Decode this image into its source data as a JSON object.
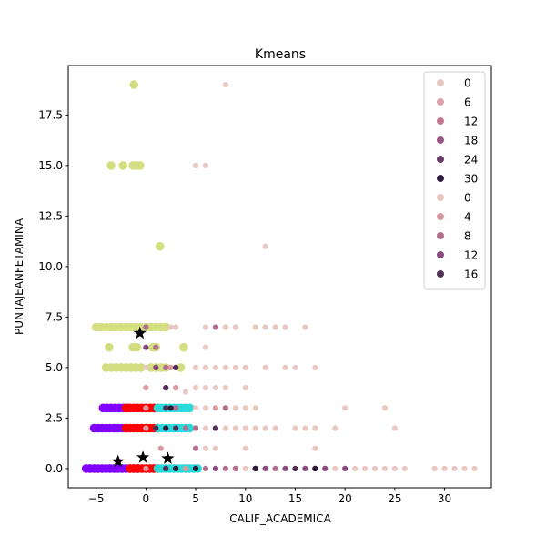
{
  "chart_data": {
    "type": "scatter",
    "title": "Kmeans",
    "xlabel": "CALIF_ACADEMICA",
    "ylabel": "PUNTAJEANFETAMINA",
    "xlim": [
      -7.8,
      34.7
    ],
    "ylim": [
      -0.95,
      19.95
    ],
    "x_ticks": [
      -5,
      0,
      5,
      10,
      15,
      20,
      25,
      30
    ],
    "y_ticks": [
      0.0,
      2.5,
      5.0,
      7.5,
      10.0,
      12.5,
      15.0,
      17.5
    ],
    "x_tick_labels": [
      "−5",
      "0",
      "5",
      "10",
      "15",
      "20",
      "25",
      "30"
    ],
    "y_tick_labels": [
      "0.0",
      "2.5",
      "5.0",
      "7.5",
      "10.0",
      "12.5",
      "15.0",
      "17.5"
    ],
    "grid": false,
    "legend": {
      "placement": "upper right",
      "entries": [
        {
          "label": "0",
          "color": "#e9c7c2"
        },
        {
          "label": "6",
          "color": "#dca2a8"
        },
        {
          "label": "12",
          "color": "#c4788f"
        },
        {
          "label": "18",
          "color": "#9c5486"
        },
        {
          "label": "24",
          "color": "#6a3867"
        },
        {
          "label": "30",
          "color": "#2f1c3c"
        },
        {
          "label": "0",
          "color": "#ebc5bd"
        },
        {
          "label": "4",
          "color": "#d99aa2"
        },
        {
          "label": "8",
          "color": "#b26e8d"
        },
        {
          "label": "12",
          "color": "#8a4a80"
        },
        {
          "label": "16",
          "color": "#522e57"
        }
      ]
    },
    "series": [
      {
        "color": "#d2de80",
        "marker": "circle-large",
        "points": [
          [
            -1.2,
            19
          ],
          [
            -3.5,
            15
          ],
          [
            -2.3,
            15
          ],
          [
            -1.3,
            15
          ],
          [
            -0.9,
            15
          ],
          [
            -0.6,
            15
          ],
          [
            1.4,
            11
          ],
          [
            -5,
            7
          ],
          [
            -4.5,
            7
          ],
          [
            -4,
            7
          ],
          [
            -3.5,
            7
          ],
          [
            -3,
            7
          ],
          [
            -2.5,
            7
          ],
          [
            -2,
            7
          ],
          [
            -1.5,
            7
          ],
          [
            -1,
            7
          ],
          [
            -0.5,
            7
          ],
          [
            0,
            7
          ],
          [
            0.5,
            7
          ],
          [
            1,
            7
          ],
          [
            1.5,
            7
          ],
          [
            2,
            7
          ],
          [
            -3.7,
            6
          ],
          [
            -1.3,
            6
          ],
          [
            -0.9,
            6
          ],
          [
            0.7,
            6
          ],
          [
            1.0,
            6
          ],
          [
            3.8,
            6
          ],
          [
            -4,
            5
          ],
          [
            -3.5,
            5
          ],
          [
            -3,
            5
          ],
          [
            -2.5,
            5
          ],
          [
            -2,
            5
          ],
          [
            -1.5,
            5
          ],
          [
            -1,
            5
          ],
          [
            -0.5,
            5
          ],
          [
            0.5,
            5
          ],
          [
            1,
            5
          ],
          [
            1.5,
            5
          ],
          [
            2,
            5
          ],
          [
            3.5,
            5
          ]
        ]
      },
      {
        "color": "#7f00ff",
        "marker": "circle-large",
        "points": [
          [
            -6,
            0
          ],
          [
            -5.6,
            0
          ],
          [
            -5.2,
            0
          ],
          [
            -4.8,
            0
          ],
          [
            -4.4,
            0
          ],
          [
            -4,
            0
          ],
          [
            -3.6,
            0
          ],
          [
            -3.2,
            0
          ],
          [
            -2.8,
            0
          ],
          [
            -2.4,
            0
          ],
          [
            -2,
            0
          ],
          [
            -1.6,
            0
          ],
          [
            -1.2,
            0
          ],
          [
            -0.8,
            0
          ],
          [
            -5.2,
            2
          ],
          [
            -4.8,
            2
          ],
          [
            -4.4,
            2
          ],
          [
            -4,
            2
          ],
          [
            -3.6,
            2
          ],
          [
            -3.2,
            2
          ],
          [
            -2.8,
            2
          ],
          [
            -2.4,
            2
          ],
          [
            -2,
            2
          ],
          [
            -4.3,
            3
          ],
          [
            -3.9,
            3
          ],
          [
            -3.5,
            3
          ],
          [
            -3.1,
            3
          ],
          [
            -2.7,
            3
          ],
          [
            -2.3,
            3
          ],
          [
            -1.9,
            3
          ]
        ]
      },
      {
        "color": "#ff0000",
        "marker": "circle-large",
        "points": [
          [
            -1.6,
            0
          ],
          [
            -1.2,
            0
          ],
          [
            -0.8,
            0
          ],
          [
            -0.4,
            0
          ],
          [
            0,
            0
          ],
          [
            0.4,
            0
          ],
          [
            0.8,
            0
          ],
          [
            1.2,
            0
          ],
          [
            -2,
            2
          ],
          [
            -1.6,
            2
          ],
          [
            -1.2,
            2
          ],
          [
            -0.8,
            2
          ],
          [
            -0.4,
            2
          ],
          [
            0,
            2
          ],
          [
            0.4,
            2
          ],
          [
            0.8,
            2
          ],
          [
            1.2,
            2
          ],
          [
            -2,
            3
          ],
          [
            -1.6,
            3
          ],
          [
            -1.2,
            3
          ],
          [
            -0.8,
            3
          ],
          [
            -0.4,
            3
          ],
          [
            0,
            3
          ],
          [
            0.4,
            3
          ],
          [
            0.8,
            3
          ],
          [
            1.2,
            3
          ]
        ]
      },
      {
        "color": "#2ad9d9",
        "marker": "circle-large",
        "points": [
          [
            1.2,
            0
          ],
          [
            1.6,
            0
          ],
          [
            2,
            0
          ],
          [
            2.4,
            0
          ],
          [
            2.8,
            0
          ],
          [
            3.2,
            0
          ],
          [
            3.6,
            0
          ],
          [
            4,
            0
          ],
          [
            4.4,
            0
          ],
          [
            4.8,
            0
          ],
          [
            5.2,
            0
          ],
          [
            1.2,
            2
          ],
          [
            1.6,
            2
          ],
          [
            2,
            2
          ],
          [
            2.4,
            2
          ],
          [
            2.8,
            2
          ],
          [
            3.2,
            2
          ],
          [
            3.6,
            2
          ],
          [
            4,
            2
          ],
          [
            4.4,
            2
          ],
          [
            1.2,
            3
          ],
          [
            1.6,
            3
          ],
          [
            2,
            3
          ],
          [
            2.4,
            3
          ],
          [
            2.8,
            3
          ],
          [
            3.2,
            3
          ],
          [
            3.6,
            3
          ],
          [
            4,
            3
          ],
          [
            4.4,
            3
          ]
        ]
      },
      {
        "color": "#e9c7c2",
        "marker": "circle-small",
        "points": [
          [
            8,
            19
          ],
          [
            5,
            15
          ],
          [
            6,
            15
          ],
          [
            12,
            11
          ],
          [
            2.5,
            7
          ],
          [
            3,
            7
          ],
          [
            6,
            7
          ],
          [
            8,
            7
          ],
          [
            9,
            7
          ],
          [
            11,
            7
          ],
          [
            12,
            7
          ],
          [
            13,
            7
          ],
          [
            14,
            7
          ],
          [
            16,
            7
          ],
          [
            6,
            6
          ],
          [
            0,
            5
          ],
          [
            2.5,
            5
          ],
          [
            5,
            5
          ],
          [
            6,
            5
          ],
          [
            7,
            5
          ],
          [
            8,
            5
          ],
          [
            9,
            5
          ],
          [
            10,
            5
          ],
          [
            12,
            5
          ],
          [
            14,
            5
          ],
          [
            15,
            5
          ],
          [
            17,
            5
          ],
          [
            5,
            4
          ],
          [
            6,
            4
          ],
          [
            7,
            4
          ],
          [
            8,
            4
          ],
          [
            10,
            4
          ],
          [
            4,
            3.8
          ],
          [
            5,
            3
          ],
          [
            6,
            3
          ],
          [
            7,
            3
          ],
          [
            8,
            3
          ],
          [
            9,
            3
          ],
          [
            10,
            3
          ],
          [
            11,
            3
          ],
          [
            20,
            3
          ],
          [
            24,
            3
          ],
          [
            5,
            2
          ],
          [
            6,
            2
          ],
          [
            7,
            2
          ],
          [
            8,
            2
          ],
          [
            9,
            2
          ],
          [
            10,
            2
          ],
          [
            11,
            2
          ],
          [
            12,
            2
          ],
          [
            13,
            2
          ],
          [
            15,
            2
          ],
          [
            16,
            2
          ],
          [
            17,
            2
          ],
          [
            19,
            2
          ],
          [
            25,
            2
          ],
          [
            6,
            1
          ],
          [
            7,
            1
          ],
          [
            10,
            1
          ],
          [
            17,
            1
          ],
          [
            7,
            0
          ],
          [
            8,
            0
          ],
          [
            9,
            0
          ],
          [
            10,
            0
          ],
          [
            12,
            0
          ],
          [
            18,
            0
          ],
          [
            19,
            0
          ],
          [
            20,
            0
          ],
          [
            21,
            0
          ],
          [
            22,
            0
          ],
          [
            23,
            0
          ],
          [
            24,
            0
          ],
          [
            25,
            0
          ],
          [
            26,
            0
          ],
          [
            29,
            0
          ],
          [
            30,
            0
          ],
          [
            31,
            0
          ],
          [
            32,
            0
          ],
          [
            33,
            0
          ]
        ]
      },
      {
        "color": "#d99aa2",
        "marker": "circle-small",
        "points": [
          [
            0,
            4
          ],
          [
            0,
            3
          ],
          [
            3,
            4
          ],
          [
            0,
            0
          ],
          [
            4,
            0
          ],
          [
            1.5,
            1
          ],
          [
            2.5,
            5
          ],
          [
            7,
            3
          ],
          [
            3,
            0
          ],
          [
            0,
            2
          ]
        ]
      },
      {
        "color": "#b26e8d",
        "marker": "circle-small",
        "points": [
          [
            0,
            7
          ],
          [
            1,
            6
          ],
          [
            2,
            5
          ],
          [
            5,
            2
          ],
          [
            6,
            0
          ],
          [
            7,
            7
          ],
          [
            8,
            3
          ],
          [
            9,
            0
          ],
          [
            13,
            0
          ],
          [
            5,
            1
          ],
          [
            4,
            2
          ],
          [
            7,
            2
          ],
          [
            8,
            0
          ],
          [
            3,
            3
          ]
        ]
      },
      {
        "color": "#8a4a80",
        "marker": "circle-small",
        "points": [
          [
            0,
            6
          ],
          [
            1,
            5
          ],
          [
            7,
            0
          ],
          [
            12,
            0
          ],
          [
            14,
            0
          ],
          [
            16,
            0
          ],
          [
            18,
            0
          ],
          [
            20,
            0
          ],
          [
            5,
            0
          ]
        ]
      },
      {
        "color": "#522e57",
        "marker": "circle-small",
        "points": [
          [
            2,
            4
          ],
          [
            3,
            5
          ],
          [
            2,
            3
          ],
          [
            7,
            2
          ],
          [
            11,
            0
          ],
          [
            15,
            0
          ],
          [
            17,
            0
          ],
          [
            2,
            0
          ],
          [
            3,
            2
          ],
          [
            1,
            2
          ]
        ]
      },
      {
        "color": "#2f1c3c",
        "marker": "circle-small",
        "points": [
          [
            2.5,
            3
          ],
          [
            17,
            0
          ],
          [
            11,
            0
          ],
          [
            5,
            0
          ],
          [
            2,
            2
          ],
          [
            3,
            0
          ]
        ]
      }
    ],
    "centroids": [
      [
        -0.6,
        6.7
      ],
      [
        -2.8,
        0.35
      ],
      [
        -0.3,
        0.55
      ],
      [
        2.2,
        0.5
      ]
    ]
  }
}
